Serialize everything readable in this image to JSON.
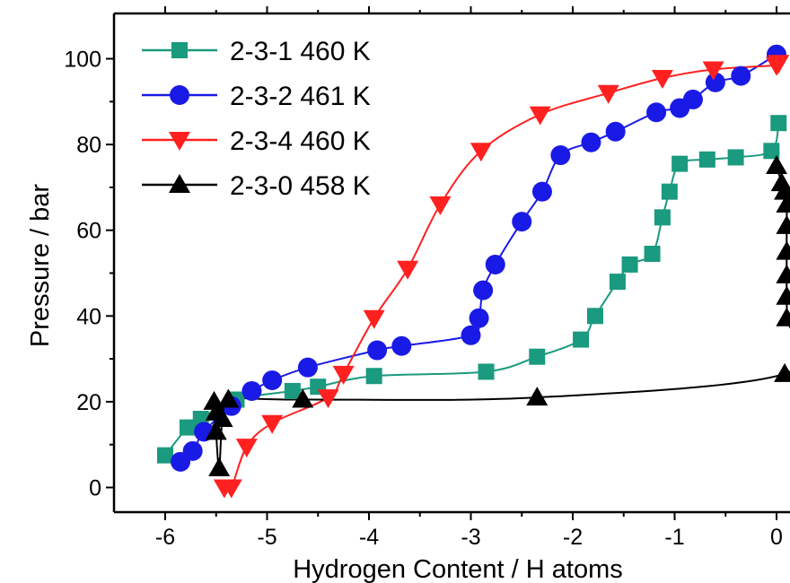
{
  "chart_data": {
    "type": "line",
    "xlabel": "Hydrogen Content / H atoms",
    "ylabel": "Pressure / bar",
    "xlim": [
      -6.55,
      0.15
    ],
    "ylim": [
      -5,
      110
    ],
    "x_ticks": [
      -6,
      -5,
      -4,
      -3,
      -2,
      -1,
      0
    ],
    "x_tick_labels": [
      "-6",
      "-5",
      "-4",
      "-3",
      "-2",
      "-1",
      "0"
    ],
    "y_ticks": [
      0,
      20,
      40,
      60,
      80,
      100
    ],
    "y_tick_labels": [
      "0",
      "20",
      "40",
      "60",
      "80",
      "100"
    ],
    "grid": false,
    "legend_position": "top-left",
    "series": [
      {
        "name": "2-3-1 460 K",
        "color": "#1a9a7e",
        "marker": "square",
        "x": [
          -6.0,
          -5.78,
          -5.65,
          -5.3,
          -4.75,
          -4.5,
          -3.95,
          -2.85,
          -2.35,
          -1.92,
          -1.78,
          -1.56,
          -1.44,
          -1.22,
          -1.12,
          -1.05,
          -0.95,
          -0.68,
          -0.4,
          -0.05,
          0.02
        ],
        "y": [
          7.5,
          14,
          16,
          20.5,
          22.5,
          23.5,
          26,
          27,
          30.5,
          34.5,
          40,
          48,
          52,
          54.5,
          63,
          69,
          75.5,
          76.5,
          77,
          78.5,
          85
        ]
      },
      {
        "name": "2-3-2 461 K",
        "color": "#1a1ae6",
        "marker": "circle",
        "x": [
          -5.85,
          -5.73,
          -5.62,
          -5.35,
          -5.15,
          -4.95,
          -4.6,
          -3.92,
          -3.68,
          -3.0,
          -2.92,
          -2.88,
          -2.76,
          -2.5,
          -2.3,
          -2.12,
          -1.82,
          -1.58,
          -1.18,
          -0.95,
          -0.82,
          -0.6,
          -0.35,
          0.0
        ],
        "y": [
          6,
          8.5,
          13,
          19,
          22.5,
          25,
          28,
          32,
          33,
          35.5,
          39.5,
          46,
          52,
          62,
          69,
          77.5,
          80.5,
          83,
          87.5,
          88.5,
          90.5,
          94.5,
          96,
          101
        ]
      },
      {
        "name": "2-3-4 460 K",
        "color": "#ff2020",
        "marker": "triangle-down",
        "x": [
          -5.42,
          -5.35,
          -5.2,
          -4.95,
          -4.4,
          -4.25,
          -3.95,
          -3.62,
          -3.3,
          -2.9,
          -2.32,
          -1.65,
          -1.12,
          -0.62,
          0.0,
          0.02
        ],
        "y": [
          0,
          0,
          9.5,
          15,
          21,
          26.5,
          39.5,
          51,
          66,
          78.5,
          87,
          92,
          95.5,
          97.5,
          98.5,
          99
        ]
      },
      {
        "name": "2-3-0 458 K",
        "color": "#000000",
        "marker": "triangle-up",
        "x": [
          -5.52,
          -5.5,
          -5.5,
          -5.47,
          -5.44,
          -5.38,
          -4.65,
          -2.35,
          0.08,
          0.1,
          0.1,
          0.1,
          0.1,
          0.1,
          0.1,
          0.08,
          0.05,
          0.0
        ],
        "y": [
          20,
          17.5,
          13,
          4.5,
          16,
          20.5,
          20.5,
          21,
          26.5,
          39.5,
          44.5,
          49.5,
          55,
          61,
          66,
          69,
          71,
          75
        ]
      }
    ]
  }
}
